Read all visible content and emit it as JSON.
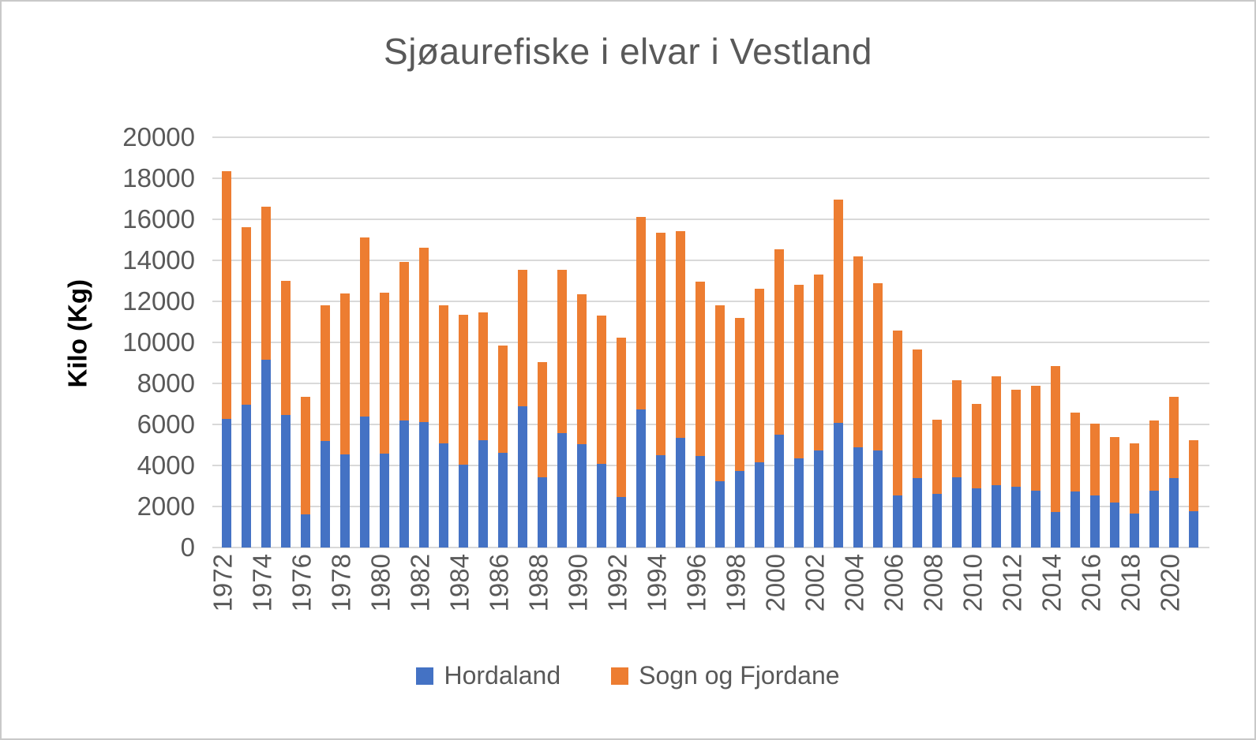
{
  "chart_data": {
    "type": "bar",
    "stacked": true,
    "title": "Sjøaurefiske i elvar i Vestland",
    "xlabel": "",
    "ylabel": "Kilo (Kg)",
    "ylim": [
      0,
      20000
    ],
    "ytick_step": 2000,
    "grid": "horizontal-only",
    "legend_position": "bottom",
    "gridline_color": "#d9d9d9",
    "axis_text_color": "#595959",
    "categories": [
      "1972",
      "1973",
      "1974",
      "1975",
      "1976",
      "1977",
      "1978",
      "1979",
      "1980",
      "1981",
      "1982",
      "1983",
      "1984",
      "1985",
      "1986",
      "1987",
      "1988",
      "1989",
      "1990",
      "1991",
      "1992",
      "1993",
      "1994",
      "1995",
      "1996",
      "1997",
      "1998",
      "1999",
      "2000",
      "2001",
      "2002",
      "2003",
      "2004",
      "2005",
      "2006",
      "2007",
      "2008",
      "2009",
      "2010",
      "2011",
      "2012",
      "2013",
      "2014",
      "2015",
      "2016",
      "2017",
      "2018",
      "2019",
      "2020",
      "2021"
    ],
    "xtick_labels": [
      "1972",
      "1974",
      "1976",
      "1978",
      "1980",
      "1982",
      "1984",
      "1986",
      "1988",
      "1990",
      "1992",
      "1994",
      "1996",
      "1998",
      "2000",
      "2002",
      "2004",
      "2006",
      "2008",
      "2010",
      "2012",
      "2014",
      "2016",
      "2018",
      "2020"
    ],
    "series": [
      {
        "name": "Hordaland",
        "color": "#4472c4",
        "values": [
          6270,
          6960,
          9160,
          6480,
          1630,
          5210,
          4540,
          6380,
          4580,
          6180,
          6100,
          5090,
          4020,
          5230,
          4610,
          6890,
          3440,
          5590,
          5040,
          4080,
          2450,
          6740,
          4490,
          5330,
          4460,
          3230,
          3740,
          4150,
          5500,
          4330,
          4750,
          6080,
          4900,
          4750,
          2540,
          3370,
          2600,
          3410,
          2890,
          3040,
          2950,
          2780,
          1740,
          2740,
          2550,
          2200,
          1650,
          2760,
          3370,
          1780
        ]
      },
      {
        "name": "Sogn og Fjordane",
        "color": "#ed7d31",
        "values": [
          12060,
          8640,
          7440,
          6540,
          5730,
          6590,
          7830,
          8750,
          7840,
          7750,
          8510,
          6710,
          7340,
          6250,
          5220,
          6640,
          5610,
          7960,
          7320,
          7210,
          7770,
          9390,
          10850,
          10090,
          8520,
          8560,
          7470,
          8460,
          9050,
          8470,
          8570,
          10900,
          9310,
          8150,
          8030,
          6270,
          3630,
          4750,
          4130,
          5290,
          4750,
          5110,
          7110,
          3850,
          3500,
          3170,
          3430,
          3420,
          3970,
          3460
        ]
      }
    ]
  }
}
